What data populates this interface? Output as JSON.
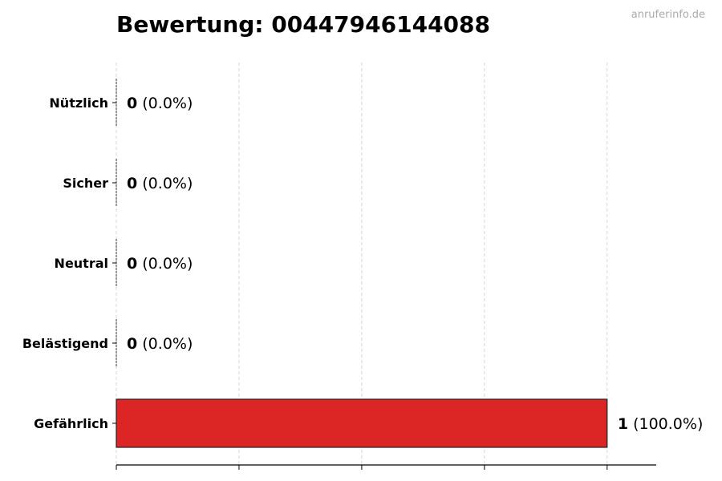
{
  "watermark": "anruferinfo.de",
  "chart_data": {
    "type": "bar",
    "orientation": "horizontal",
    "title": "Bewertung: 00447946144088",
    "categories": [
      "Nützlich",
      "Sicher",
      "Neutral",
      "Belästigend",
      "Gefährlich"
    ],
    "values": [
      0,
      0,
      0,
      0,
      1
    ],
    "percent_labels": [
      "(0.0%)",
      "(0.0%)",
      "(0.0%)",
      "(0.0%)",
      "(100.0%)"
    ],
    "xlim": [
      0,
      1.1
    ],
    "x_gridlines": [
      0,
      0.25,
      0.5,
      0.75,
      1.0
    ],
    "x_tick_labels_shown": false,
    "grid": "x-dashed",
    "bar_color": "#dc2626",
    "xlabel": "",
    "ylabel": ""
  }
}
